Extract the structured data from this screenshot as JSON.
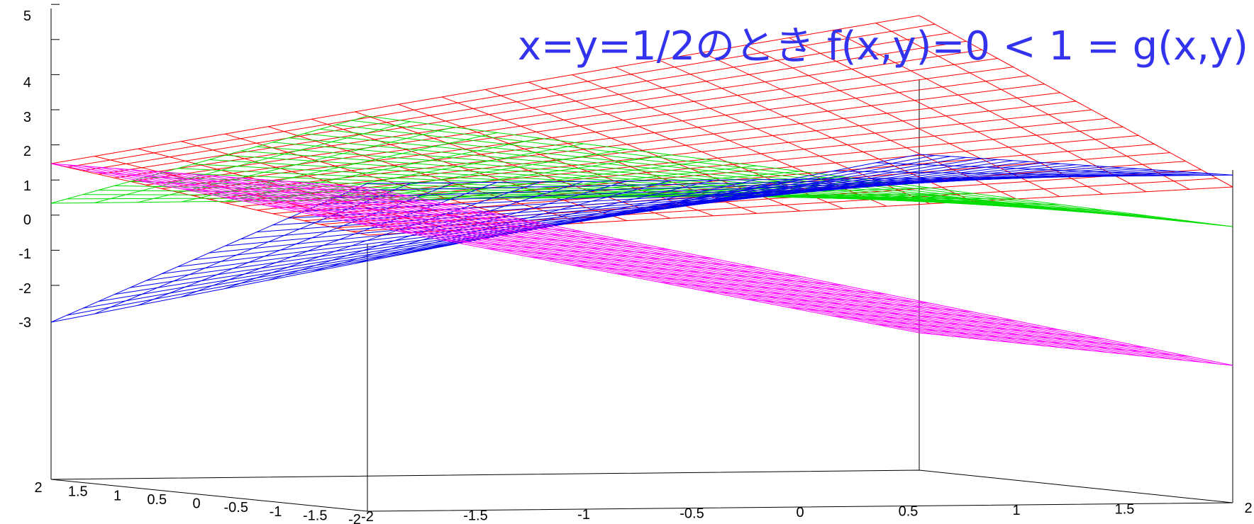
{
  "chart_data": {
    "type": "surface3d",
    "title": "",
    "annotation": "x=y=1/2のとき f(x,y)=0 < 1 = g(x,y)",
    "annotation_color": "#3333ee",
    "xlabel": "",
    "ylabel": "",
    "zlabel": "",
    "x_range": [
      -2,
      2
    ],
    "y_range": [
      -2,
      2
    ],
    "z_range": [
      -3,
      5
    ],
    "z_ticks": [
      "-3",
      "-2",
      "-1",
      "0",
      "1",
      "2",
      "3",
      "4",
      "5"
    ],
    "x_ticks": [
      "-2",
      "-1.5",
      "-1",
      "-0.5",
      "0",
      "0.5",
      "1",
      "1.5",
      "2"
    ],
    "y_ticks": [
      "-2",
      "-1.5",
      "-1",
      "-0.5",
      "0",
      "0.5",
      "1",
      "1.5",
      "2"
    ],
    "grid": false,
    "series": [
      {
        "color": "#ff0000",
        "corner_heights": {
          "x-2_y2": 1.0,
          "x2_y2": 4.5,
          "x2_y-2": 1.0,
          "x-2_y-2": 0.0
        }
      },
      {
        "color": "#00dd00",
        "corner_heights": {
          "x-2_y2": 0.0,
          "x2_y2": 0.0,
          "x2_y-2": 0.0,
          "x-2_y-2": 3.0
        }
      },
      {
        "color": "#0000ee",
        "corner_heights": {
          "x-2_y2": -3.0,
          "x2_y2": 1.0,
          "x2_y-2": 1.3,
          "x-2_y-2": 1.3
        }
      },
      {
        "color": "#ff00ff",
        "corner_heights": {
          "x-2_y2": 1.0,
          "x2_y2": -3.5,
          "x2_y-2": -3.5,
          "x-2_y-2": 1.2
        }
      }
    ]
  }
}
